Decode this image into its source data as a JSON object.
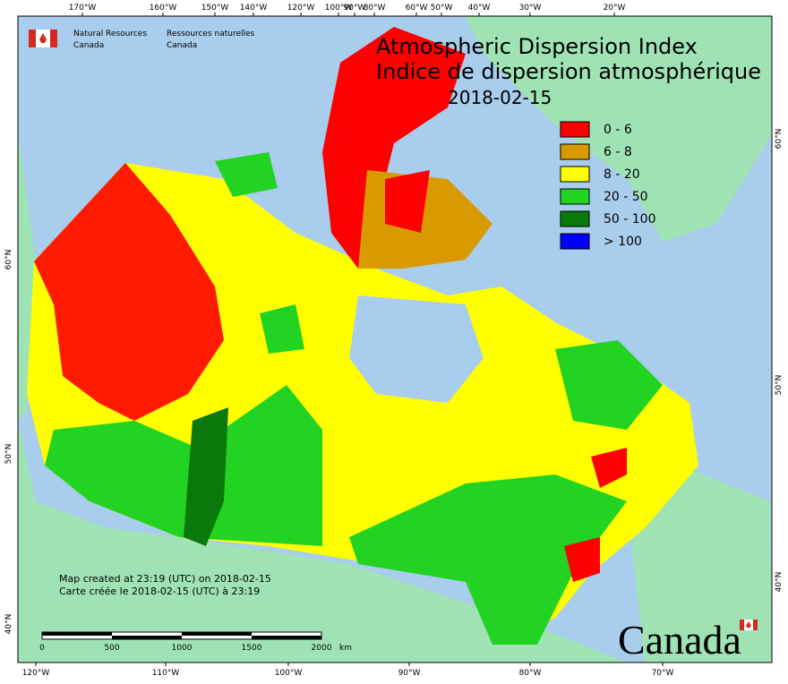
{
  "header": {
    "agency_en": "Natural Resources",
    "agency_en_2": "Canada",
    "agency_fr": "Ressources naturelles",
    "agency_fr_2": "Canada"
  },
  "title": {
    "en": "Atmospheric Dispersion Index",
    "fr": "Indice de dispersion atmosphérique",
    "date": "2018-02-15"
  },
  "legend": [
    {
      "label": "0 - 6",
      "color": "#ff0000"
    },
    {
      "label": "6 - 8",
      "color": "#d99a00"
    },
    {
      "label": "8 - 20",
      "color": "#ffff00"
    },
    {
      "label": "20 - 50",
      "color": "#22d322"
    },
    {
      "label": "50 - 100",
      "color": "#0a780a"
    },
    {
      "label": "> 100",
      "color": "#0000ff"
    }
  ],
  "top_labels": [
    "170°W",
    "160°W",
    "150°W",
    "140°W",
    "120°W",
    "100°W",
    "90°W",
    "80°W",
    "60°W",
    "50°W",
    "40°W",
    "30°W",
    "20°W"
  ],
  "bottom_labels": [
    "120°W",
    "110°W",
    "100°W",
    "90°W",
    "80°W",
    "70°W"
  ],
  "left_labels": [
    "60°N",
    "50°N",
    "40°N"
  ],
  "right_labels": [
    "60°N",
    "50°N",
    "40°N"
  ],
  "credits": [
    "Map created at 23:19 (UTC) on 2018-02-15",
    "Carte créée le 2018-02-15 (UTC) à 23:19"
  ],
  "scale": {
    "ticks": [
      "0",
      "500",
      "1000",
      "1500",
      "2000"
    ],
    "unit": "km"
  },
  "wordmark": "Canada"
}
